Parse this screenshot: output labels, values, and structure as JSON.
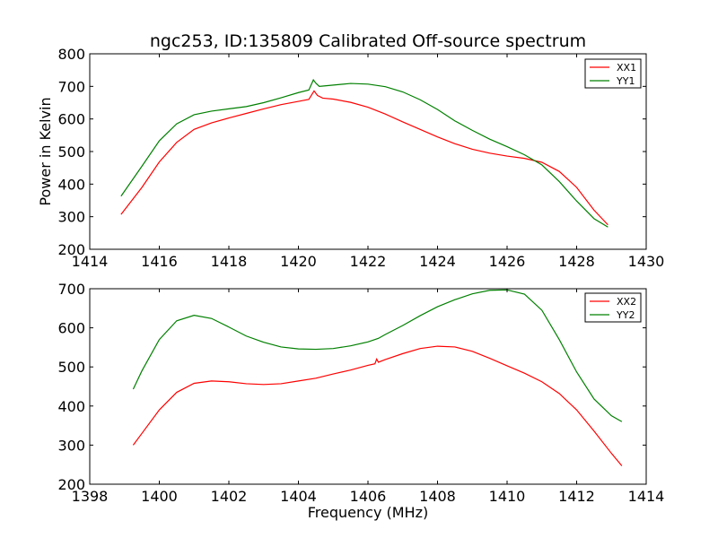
{
  "title": "ngc253, ID:135809 Calibrated Off-source spectrum",
  "colors": {
    "XX": "#ff0000",
    "YY": "#008000"
  },
  "chart_data": [
    {
      "type": "line",
      "xlabel": "",
      "ylabel": "Power in Kelvin",
      "xlim": [
        1414,
        1430
      ],
      "ylim": [
        200,
        800
      ],
      "xticks": [
        1414,
        1416,
        1418,
        1420,
        1422,
        1424,
        1426,
        1428,
        1430
      ],
      "yticks": [
        200,
        300,
        400,
        500,
        600,
        700,
        800
      ],
      "legend_position": "top-right",
      "series": [
        {
          "name": "XX1",
          "color": "#ff0000",
          "x": [
            1414.9,
            1415.5,
            1416,
            1416.5,
            1417,
            1417.5,
            1418,
            1418.5,
            1419,
            1419.5,
            1420,
            1420.3,
            1420.45,
            1420.55,
            1420.7,
            1421,
            1421.5,
            1422,
            1422.5,
            1423,
            1423.5,
            1424,
            1424.5,
            1425,
            1425.5,
            1426,
            1426.5,
            1427,
            1427.5,
            1428,
            1428.5,
            1428.9
          ],
          "y": [
            307,
            390,
            468,
            528,
            568,
            588,
            603,
            617,
            631,
            644,
            654,
            660,
            686,
            672,
            664,
            661,
            651,
            636,
            615,
            591,
            568,
            545,
            524,
            507,
            495,
            486,
            479,
            467,
            439,
            390,
            320,
            275
          ]
        },
        {
          "name": "YY1",
          "color": "#008000",
          "x": [
            1414.9,
            1415.5,
            1416,
            1416.5,
            1417,
            1417.5,
            1418,
            1418.5,
            1419,
            1419.5,
            1420,
            1420.3,
            1420.43,
            1420.5,
            1420.6,
            1420.8,
            1421.5,
            1422,
            1422.5,
            1423,
            1423.5,
            1424,
            1424.5,
            1425,
            1425.5,
            1426,
            1426.5,
            1427,
            1427.5,
            1428,
            1428.5,
            1428.9
          ],
          "y": [
            363,
            455,
            533,
            585,
            613,
            624,
            631,
            638,
            650,
            665,
            681,
            689,
            720,
            710,
            700,
            702,
            709,
            707,
            699,
            683,
            659,
            629,
            594,
            565,
            538,
            515,
            490,
            459,
            408,
            348,
            294,
            268
          ]
        }
      ]
    },
    {
      "type": "line",
      "xlabel": "Frequency (MHz)",
      "ylabel": "",
      "xlim": [
        1398,
        1414
      ],
      "ylim": [
        200,
        700
      ],
      "xticks": [
        1398,
        1400,
        1402,
        1404,
        1406,
        1408,
        1410,
        1412,
        1414
      ],
      "yticks": [
        200,
        300,
        400,
        500,
        600,
        700
      ],
      "legend_position": "top-right",
      "series": [
        {
          "name": "XX2",
          "color": "#ff0000",
          "x": [
            1399.25,
            1399.5,
            1400,
            1400.5,
            1401,
            1401.5,
            1402,
            1402.5,
            1403,
            1403.5,
            1404,
            1404.5,
            1405,
            1405.5,
            1406,
            1406.2,
            1406.25,
            1406.3,
            1406.5,
            1407,
            1407.5,
            1408,
            1408.5,
            1409,
            1409.5,
            1410,
            1410.5,
            1411,
            1411.5,
            1412,
            1412.5,
            1413,
            1413.3
          ],
          "y": [
            300,
            330,
            390,
            435,
            458,
            464,
            462,
            457,
            455,
            457,
            464,
            471,
            482,
            492,
            504,
            508,
            520,
            512,
            519,
            534,
            547,
            553,
            551,
            540,
            522,
            503,
            484,
            462,
            432,
            390,
            336,
            279,
            247
          ]
        },
        {
          "name": "YY2",
          "color": "#008000",
          "x": [
            1399.25,
            1399.5,
            1400,
            1400.5,
            1401,
            1401.5,
            1402,
            1402.5,
            1403,
            1403.5,
            1404,
            1404.5,
            1405,
            1405.5,
            1406,
            1406.3,
            1406.5,
            1407,
            1407.5,
            1408,
            1408.5,
            1409,
            1409.5,
            1410,
            1410.5,
            1411,
            1411.5,
            1412,
            1412.5,
            1413,
            1413.3
          ],
          "y": [
            443,
            490,
            570,
            618,
            632,
            624,
            602,
            579,
            563,
            551,
            546,
            545,
            547,
            554,
            564,
            573,
            583,
            606,
            631,
            654,
            672,
            687,
            696,
            697,
            686,
            645,
            570,
            487,
            418,
            375,
            360
          ]
        }
      ]
    }
  ]
}
